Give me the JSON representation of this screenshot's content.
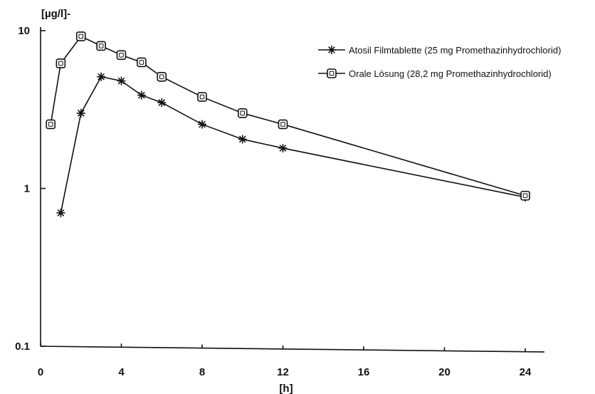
{
  "chart_data": {
    "type": "line",
    "title": "",
    "xlabel": "[h]",
    "ylabel": "[µg/l]-",
    "y_scale": "log",
    "xlim": [
      0,
      24
    ],
    "ylim": [
      0.1,
      10
    ],
    "x_ticks": [
      "0",
      "4",
      "8",
      "12",
      "16",
      "20",
      "24"
    ],
    "x_tick_values": [
      0,
      4,
      8,
      12,
      16,
      20,
      24
    ],
    "y_ticks": [
      "0.1",
      "1",
      "10"
    ],
    "y_tick_values": [
      0.1,
      1,
      10
    ],
    "grid": false,
    "legend_position": "top-right",
    "series": [
      {
        "name": "Atosil Filmtablette (25 mg Promethazinhydrochlorid)",
        "marker": "asterisk",
        "x": [
          1,
          2,
          3,
          4,
          5,
          6,
          8,
          10,
          12,
          24
        ],
        "y": [
          0.7,
          3.0,
          5.1,
          4.8,
          3.9,
          3.5,
          2.55,
          2.05,
          1.8,
          0.88
        ]
      },
      {
        "name": "Orale Lösung (28,2 mg Promethazinhydrochlorid)",
        "marker": "square",
        "x": [
          0.5,
          1,
          2,
          3,
          4,
          5,
          6,
          8,
          10,
          12,
          24
        ],
        "y": [
          2.55,
          6.2,
          9.2,
          8.0,
          7.0,
          6.3,
          5.1,
          3.8,
          3.0,
          2.55,
          0.9
        ]
      }
    ]
  }
}
